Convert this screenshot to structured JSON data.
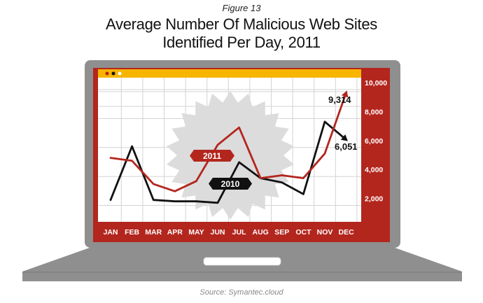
{
  "figure_label": "Figure 13",
  "source_text": "Source: Symantec.cloud",
  "colors": {
    "laptop": "#8f8f8f",
    "frame": "#b3261e",
    "topbar": "#f7b500",
    "series_2011": "#b3261e",
    "series_2010": "#111111",
    "burst": "#dcdcdc",
    "grid": "#d3d3d3"
  },
  "chart_data": {
    "type": "line",
    "title": "Average Number Of Malicious Web Sites",
    "subtitle": "Identified Per Day, 2011",
    "categories": [
      "JAN",
      "FEB",
      "MAR",
      "APR",
      "MAY",
      "JUN",
      "JUL",
      "AUG",
      "SEP",
      "OCT",
      "NOV",
      "DEC"
    ],
    "ylim": [
      0,
      10000
    ],
    "yticks": [
      "2,000",
      "4,000",
      "6,000",
      "8,000",
      "10,000"
    ],
    "ytick_values": [
      2000,
      4000,
      6000,
      8000,
      10000
    ],
    "grid": true,
    "series": [
      {
        "name": "2011",
        "color": "#b3261e",
        "values": [
          4800,
          4600,
          3000,
          2500,
          3200,
          5700,
          6900,
          3400,
          3600,
          3400,
          5100,
          9314
        ],
        "end_label": "9,314"
      },
      {
        "name": "2010",
        "color": "#111111",
        "values": [
          1900,
          5600,
          1900,
          1800,
          1800,
          1700,
          4500,
          3400,
          3100,
          2300,
          7300,
          6051
        ],
        "end_label": "6,051"
      }
    ]
  }
}
